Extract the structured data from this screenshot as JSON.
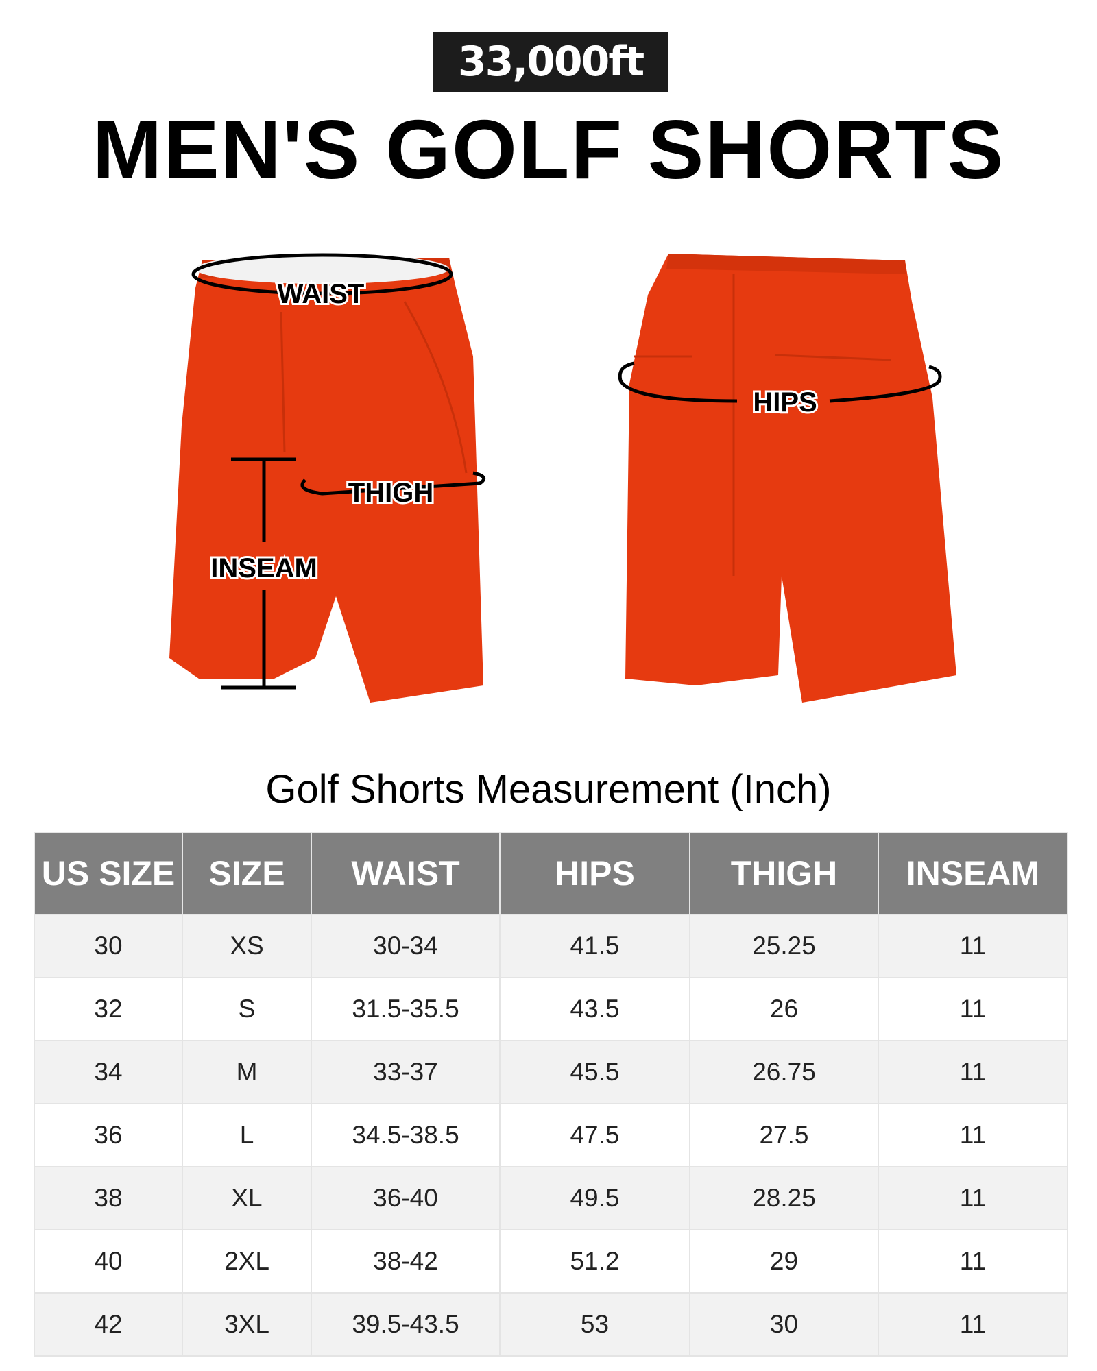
{
  "brand": {
    "logo_text": "33,000ft"
  },
  "title": "MEN'S GOLF SHORTS",
  "colors": {
    "shorts": "#e63a10",
    "header_bg": "#808080"
  },
  "diagram": {
    "labels": {
      "waist": "WAIST",
      "hips": "HIPS",
      "thigh": "THIGH",
      "inseam": "INSEAM"
    }
  },
  "subtitle": "Golf Shorts Measurement (Inch)",
  "table": {
    "headers": [
      "US SIZE",
      "SIZE",
      "WAIST",
      "HIPS",
      "THIGH",
      "INSEAM"
    ],
    "rows": [
      [
        "30",
        "XS",
        "30-34",
        "41.5",
        "25.25",
        "11"
      ],
      [
        "32",
        "S",
        "31.5-35.5",
        "43.5",
        "26",
        "11"
      ],
      [
        "34",
        "M",
        "33-37",
        "45.5",
        "26.75",
        "11"
      ],
      [
        "36",
        "L",
        "34.5-38.5",
        "47.5",
        "27.5",
        "11"
      ],
      [
        "38",
        "XL",
        "36-40",
        "49.5",
        "28.25",
        "11"
      ],
      [
        "40",
        "2XL",
        "38-42",
        "51.2",
        "29",
        "11"
      ],
      [
        "42",
        "3XL",
        "39.5-43.5",
        "53",
        "30",
        "11"
      ]
    ]
  }
}
